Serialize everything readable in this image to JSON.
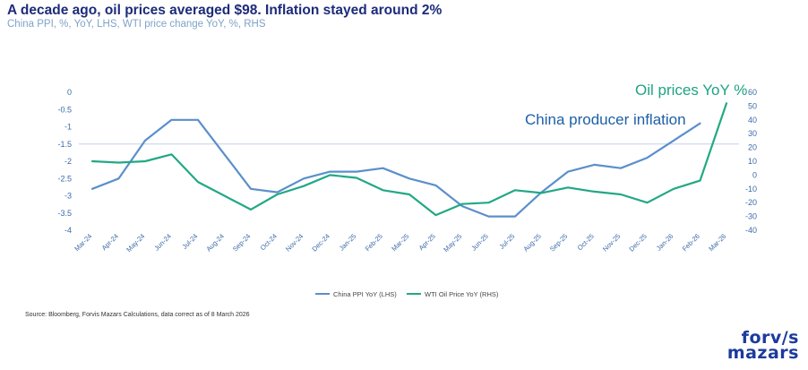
{
  "header": {
    "title": "A decade ago, oil prices averaged $98. Inflation stayed around 2%",
    "subtitle": "China PPI, %, YoY, LHS, WTI price change YoY, %, RHS"
  },
  "footer": {
    "source": "Source: Bloomberg, Forvis Mazars Calculations, data correct as of 8 March 2026",
    "logo_line1": "forv/s",
    "logo_line2": "mazars"
  },
  "colors": {
    "china": "#5b8fcb",
    "oil": "#22a884",
    "left_axis": "#3b6aa8",
    "gridline": "#c7d0ea"
  },
  "chart_data": {
    "type": "line",
    "title": "A decade ago, oil prices averaged $98. Inflation stayed around 2%",
    "subtitle": "China PPI, %, YoY, LHS, WTI price change YoY, %, RHS",
    "categories": [
      "Mar-24",
      "Apr-24",
      "May-24",
      "Jun-24",
      "Jul-24",
      "Aug-24",
      "Sep-24",
      "Oct-24",
      "Nov-24",
      "Dec-24",
      "Jan-25",
      "Feb-25",
      "Mar-25",
      "Apr-25",
      "May-25",
      "Jun-25",
      "Jul-25",
      "Aug-25",
      "Sep-25",
      "Oct-25",
      "Nov-25",
      "Dec-25",
      "Jan-26",
      "Feb-26",
      "Mar-26"
    ],
    "left_axis": {
      "min": -4,
      "max": 0,
      "ticks": [
        "0",
        "-0.5",
        "-1",
        "-1.5",
        "-2",
        "-2.5",
        "-3",
        "-3.5",
        "-4"
      ]
    },
    "right_axis": {
      "min": -40,
      "max": 60,
      "ticks": [
        "60",
        "50",
        "40",
        "30",
        "20",
        "10",
        "0",
        "-10",
        "-20",
        "-30",
        "-40"
      ]
    },
    "series": [
      {
        "name": "China PPI YoY (LHS)",
        "axis": "left",
        "values": [
          -2.8,
          -2.5,
          -1.4,
          -0.8,
          -0.8,
          -1.8,
          -2.8,
          -2.9,
          -2.5,
          -2.3,
          -2.3,
          -2.2,
          -2.5,
          -2.7,
          -3.3,
          -3.6,
          -3.6,
          -2.9,
          -2.3,
          -2.1,
          -2.2,
          -1.9,
          -1.4,
          -0.9,
          null
        ]
      },
      {
        "name": "WTI Oil Price YoY (RHS)",
        "axis": "right",
        "values": [
          10,
          9,
          10,
          15,
          -5,
          -15,
          -25,
          -14,
          -8,
          0,
          -2,
          -11,
          -14,
          -29,
          -21,
          -20,
          -11,
          -13,
          -9,
          -12,
          -14,
          -20,
          -10,
          -4,
          52
        ]
      }
    ],
    "annotations": [
      {
        "text": "Oil prices YoY %",
        "series": "WTI Oil Price YoY (RHS)"
      },
      {
        "text": "China producer inflation",
        "series": "China PPI YoY (LHS)"
      }
    ],
    "legend_position": "bottom"
  }
}
